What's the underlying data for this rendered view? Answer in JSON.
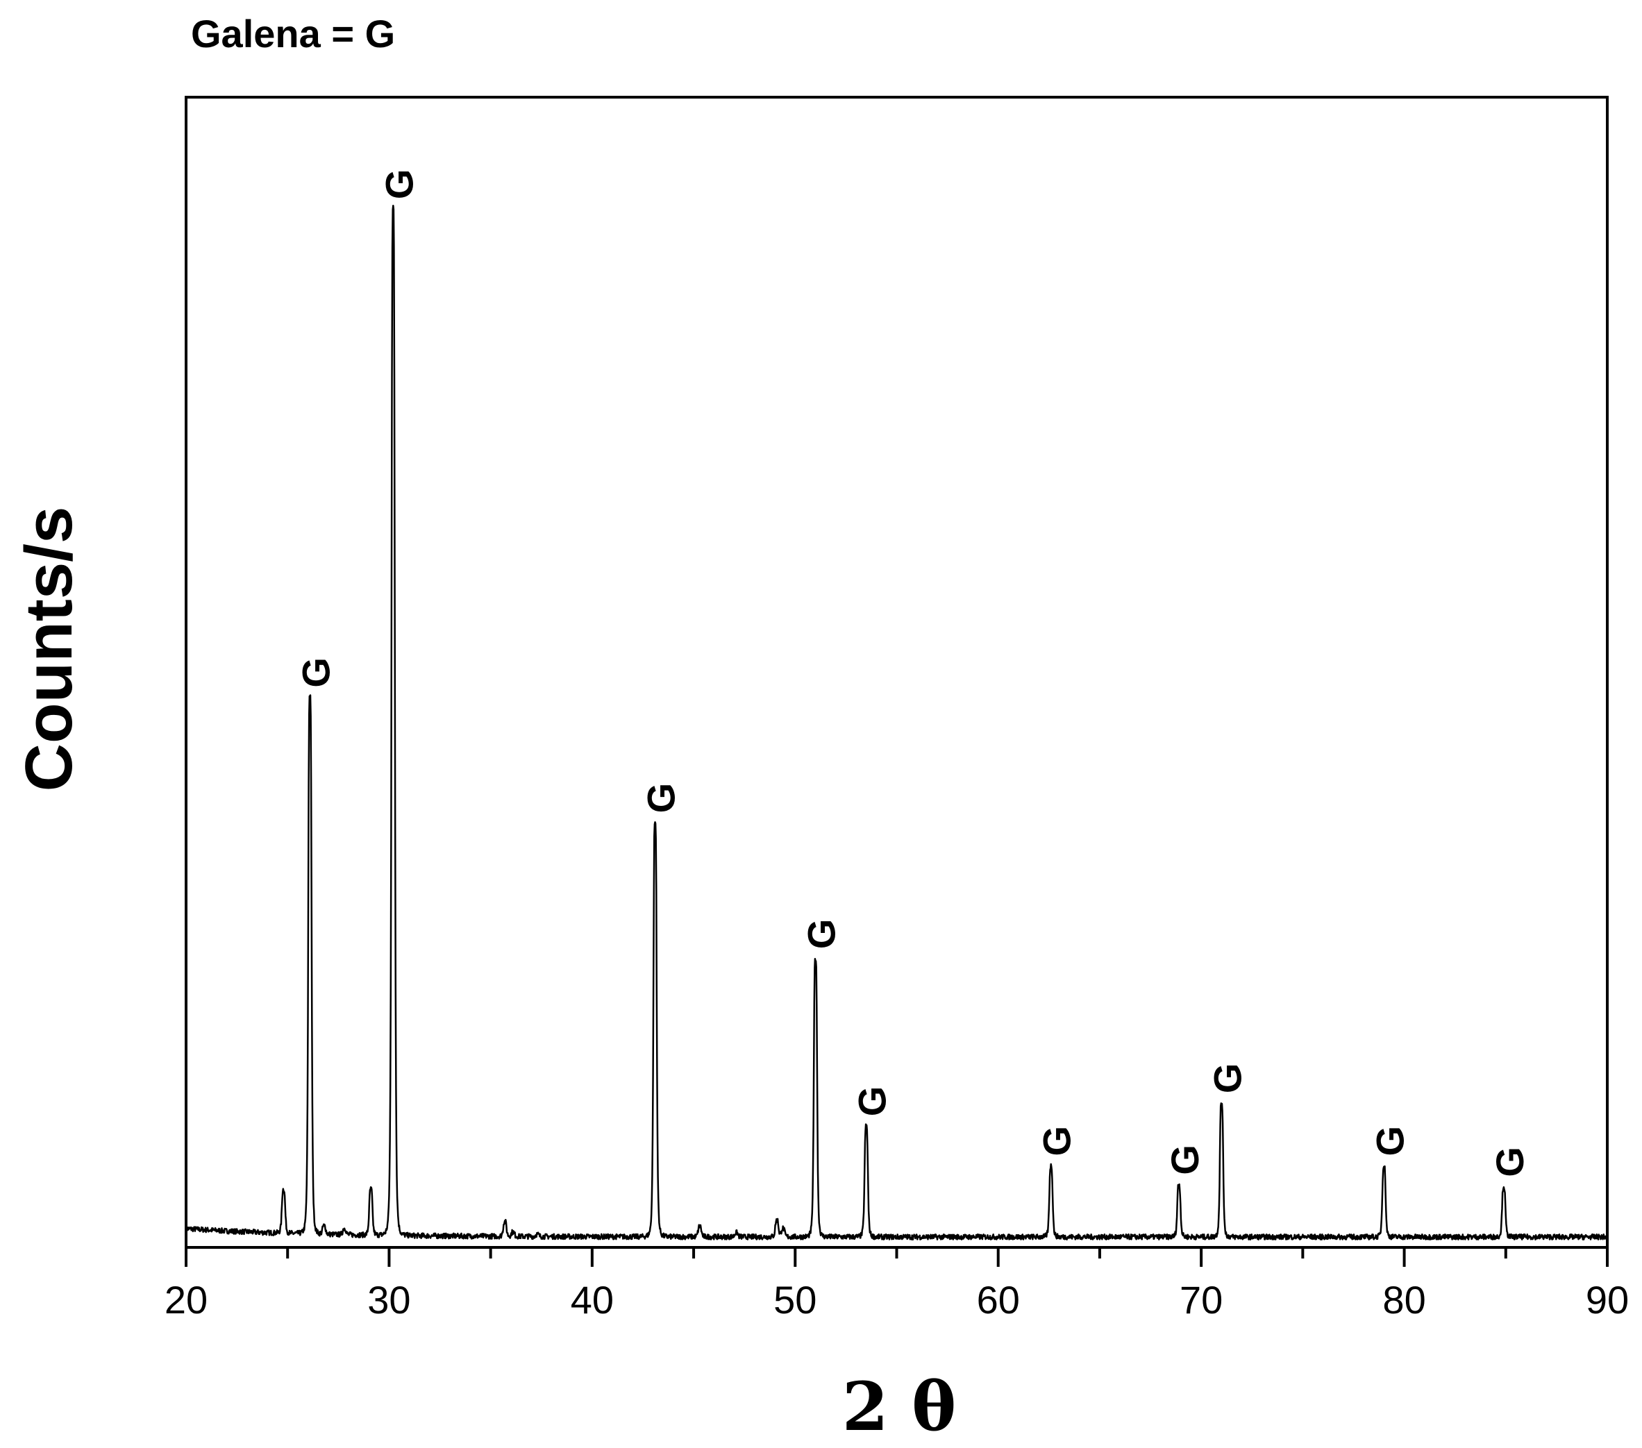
{
  "chart_data": {
    "type": "line",
    "legend_note": "Galena = G",
    "xlabel": "2 θ",
    "ylabel": "Counts/s",
    "xlim": [
      20,
      90
    ],
    "ylim": [
      0,
      1100
    ],
    "x_ticks": [
      20,
      30,
      40,
      50,
      60,
      70,
      80,
      90
    ],
    "x_tick_labels": [
      "20",
      "30",
      "40",
      "50",
      "60",
      "70",
      "80",
      "90"
    ],
    "y_ticks_shown": false,
    "grid": false,
    "baseline": 10,
    "series": [
      {
        "peaks": [
          {
            "x": 24.8,
            "y": 52
          },
          {
            "x": 26.1,
            "y": 526
          },
          {
            "x": 26.8,
            "y": 18
          },
          {
            "x": 27.8,
            "y": 16
          },
          {
            "x": 29.1,
            "y": 54
          },
          {
            "x": 30.2,
            "y": 993
          },
          {
            "x": 35.7,
            "y": 24
          },
          {
            "x": 36.1,
            "y": 14
          },
          {
            "x": 37.3,
            "y": 12
          },
          {
            "x": 43.1,
            "y": 406
          },
          {
            "x": 45.3,
            "y": 20
          },
          {
            "x": 47.1,
            "y": 14
          },
          {
            "x": 49.1,
            "y": 26
          },
          {
            "x": 49.4,
            "y": 18
          },
          {
            "x": 51.0,
            "y": 276
          },
          {
            "x": 53.5,
            "y": 116
          },
          {
            "x": 62.6,
            "y": 78
          },
          {
            "x": 68.9,
            "y": 60
          },
          {
            "x": 71.0,
            "y": 138
          },
          {
            "x": 79.0,
            "y": 78
          },
          {
            "x": 84.9,
            "y": 58
          }
        ]
      }
    ],
    "annotations": [
      {
        "text": "G",
        "x": 26.1
      },
      {
        "text": "G",
        "x": 30.2
      },
      {
        "text": "G",
        "x": 43.1
      },
      {
        "text": "G",
        "x": 51.0
      },
      {
        "text": "G",
        "x": 53.5
      },
      {
        "text": "G",
        "x": 62.6
      },
      {
        "text": "G",
        "x": 68.9
      },
      {
        "text": "G",
        "x": 71.0
      },
      {
        "text": "G",
        "x": 79.0
      },
      {
        "text": "G",
        "x": 84.9
      }
    ]
  },
  "colors": {
    "line": "#000000",
    "background": "#ffffff"
  }
}
